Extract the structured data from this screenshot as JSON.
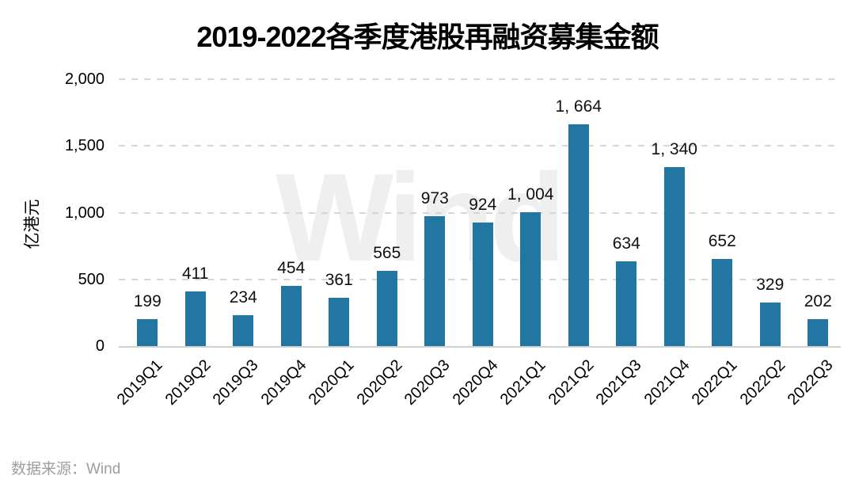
{
  "title": "2019-2022各季度港股再融资募集金额",
  "watermark": "Wind",
  "source_note": "数据来源：Wind",
  "colors": {
    "bar": "#2277a2",
    "gridline": "#d6d6d6",
    "axis_line": "#d2d2d2",
    "title_text": "#000000",
    "value_label_text": "#111111",
    "source_text": "#9e9e9e",
    "watermark": "#efefef"
  },
  "chart_data": {
    "type": "bar",
    "title": "2019-2022各季度港股再融资募集金额",
    "xlabel": "",
    "ylabel": "亿港元",
    "ylim": [
      0,
      2000
    ],
    "grid": "horizontal-dashed",
    "legend": "none",
    "categories": [
      "2019Q1",
      "2019Q2",
      "2019Q3",
      "2019Q4",
      "2020Q1",
      "2020Q2",
      "2020Q3",
      "2020Q4",
      "2021Q1",
      "2021Q2",
      "2021Q3",
      "2021Q4",
      "2022Q1",
      "2022Q2",
      "2022Q3"
    ],
    "values": [
      199,
      411,
      234,
      454,
      361,
      565,
      973,
      924,
      1004,
      1664,
      634,
      1340,
      652,
      329,
      202
    ],
    "value_labels": [
      "199",
      "411",
      "234",
      "454",
      "361",
      "565",
      "973",
      "924",
      "1, 004",
      "1, 664",
      "634",
      "1, 340",
      "652",
      "329",
      "202"
    ],
    "y_ticks": [
      {
        "value": 0,
        "label": "0"
      },
      {
        "value": 500,
        "label": "500"
      },
      {
        "value": 1000,
        "label": "1,000"
      },
      {
        "value": 1500,
        "label": "1,500"
      },
      {
        "value": 2000,
        "label": "2,000"
      }
    ]
  }
}
